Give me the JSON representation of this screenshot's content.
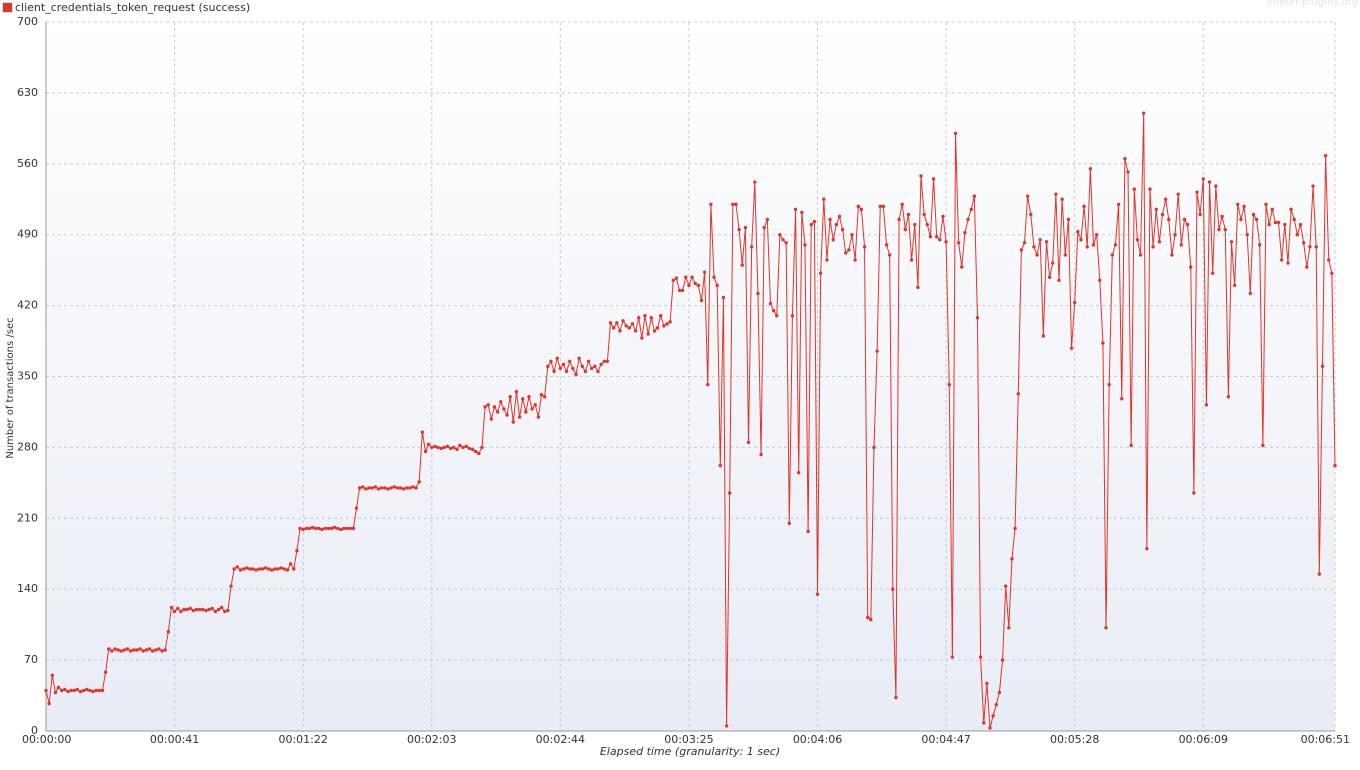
{
  "chart_data": {
    "type": "line",
    "watermark": "jmeter-plugins.org",
    "xlabel": "Elapsed time (granularity: 1 sec)",
    "ylabel": "Number of transactions /sec",
    "xlim": [
      0,
      411
    ],
    "xticks": [
      {
        "value": 0,
        "label": "00:00:00"
      },
      {
        "value": 41,
        "label": "00:00:41"
      },
      {
        "value": 82,
        "label": "00:01:22"
      },
      {
        "value": 123,
        "label": "00:02:03"
      },
      {
        "value": 164,
        "label": "00:02:44"
      },
      {
        "value": 205,
        "label": "00:03:25"
      },
      {
        "value": 246,
        "label": "00:04:06"
      },
      {
        "value": 287,
        "label": "00:04:47"
      },
      {
        "value": 328,
        "label": "00:05:28"
      },
      {
        "value": 369,
        "label": "00:06:09"
      },
      {
        "value": 411,
        "label": "00:06:51"
      }
    ],
    "ylim": [
      0,
      700
    ],
    "yticks": [
      0,
      70,
      140,
      210,
      280,
      350,
      420,
      490,
      560,
      630,
      700
    ],
    "grid": true,
    "series": [
      {
        "name": "client_credentials_token_request (success)",
        "color": "#e0342c",
        "values": [
          40,
          27,
          55,
          38,
          43,
          40,
          41,
          39,
          40,
          40,
          41,
          39,
          40,
          41,
          40,
          39,
          40,
          40,
          40,
          58,
          81,
          79,
          81,
          80,
          79,
          80,
          81,
          79,
          80,
          80,
          81,
          79,
          80,
          81,
          79,
          80,
          81,
          79,
          80,
          98,
          122,
          118,
          121,
          118,
          120,
          120,
          121,
          119,
          120,
          120,
          120,
          119,
          120,
          121,
          118,
          120,
          122,
          118,
          119,
          143,
          160,
          162,
          159,
          160,
          161,
          160,
          160,
          159,
          160,
          160,
          161,
          160,
          159,
          160,
          160,
          161,
          160,
          159,
          165,
          160,
          178,
          200,
          199,
          200,
          200,
          201,
          200,
          200,
          199,
          200,
          200,
          200,
          201,
          200,
          199,
          200,
          200,
          200,
          200,
          220,
          240,
          241,
          239,
          240,
          240,
          241,
          239,
          240,
          240,
          239,
          240,
          241,
          240,
          240,
          239,
          240,
          240,
          241,
          240,
          246,
          295,
          276,
          283,
          280,
          281,
          280,
          279,
          280,
          281,
          279,
          280,
          278,
          282,
          280,
          281,
          279,
          278,
          276,
          274,
          280,
          320,
          322,
          308,
          320,
          315,
          325,
          318,
          312,
          330,
          305,
          335,
          310,
          328,
          315,
          330,
          318,
          322,
          310,
          332,
          330,
          360,
          365,
          355,
          368,
          358,
          362,
          355,
          365,
          358,
          352,
          368,
          360,
          355,
          365,
          358,
          360,
          355,
          362,
          365,
          365,
          403,
          398,
          403,
          395,
          405,
          400,
          398,
          402,
          395,
          408,
          388,
          410,
          392,
          408,
          395,
          398,
          410,
          400,
          402,
          404,
          445,
          447,
          435,
          435,
          448,
          440,
          448,
          442,
          440,
          425,
          453,
          342,
          520,
          448,
          440,
          262,
          428,
          5,
          235,
          520,
          520,
          495,
          460,
          497,
          285,
          478,
          542,
          432,
          273,
          497,
          505,
          422,
          415,
          410,
          490,
          485,
          482,
          205,
          410,
          515,
          255,
          512,
          480,
          197,
          500,
          503,
          135,
          452,
          525,
          465,
          505,
          485,
          500,
          508,
          495,
          472,
          475,
          490,
          465,
          518,
          515,
          478,
          112,
          110,
          280,
          375,
          518,
          518,
          480,
          470,
          140,
          33,
          505,
          520,
          495,
          510,
          465,
          500,
          438,
          548,
          510,
          500,
          488,
          545,
          488,
          485,
          508,
          483,
          342,
          73,
          590,
          482,
          458,
          492,
          505,
          515,
          528,
          408,
          73,
          8,
          47,
          3,
          15,
          26,
          38,
          70,
          143,
          102,
          170,
          200,
          333,
          475,
          482,
          528,
          510,
          478,
          470,
          485,
          390,
          483,
          448,
          462,
          530,
          445,
          525,
          470,
          505,
          378,
          423,
          493,
          485,
          518,
          478,
          555,
          480,
          490,
          445,
          383,
          102,
          342,
          470,
          480,
          520,
          328,
          565,
          552,
          282,
          535,
          485,
          470,
          610,
          180,
          535,
          478,
          515,
          483,
          510,
          525,
          505,
          470,
          490,
          530,
          480,
          505,
          500,
          458,
          235,
          532,
          510,
          545,
          322,
          542,
          452,
          538,
          495,
          508,
          495,
          330,
          483,
          440,
          520,
          505,
          518,
          490,
          432,
          510,
          505,
          480,
          282,
          520,
          500,
          515,
          502,
          502,
          465,
          500,
          462,
          515,
          505,
          490,
          500,
          482,
          458,
          478,
          538,
          478,
          155,
          360,
          568,
          465,
          452,
          262
        ]
      }
    ]
  }
}
